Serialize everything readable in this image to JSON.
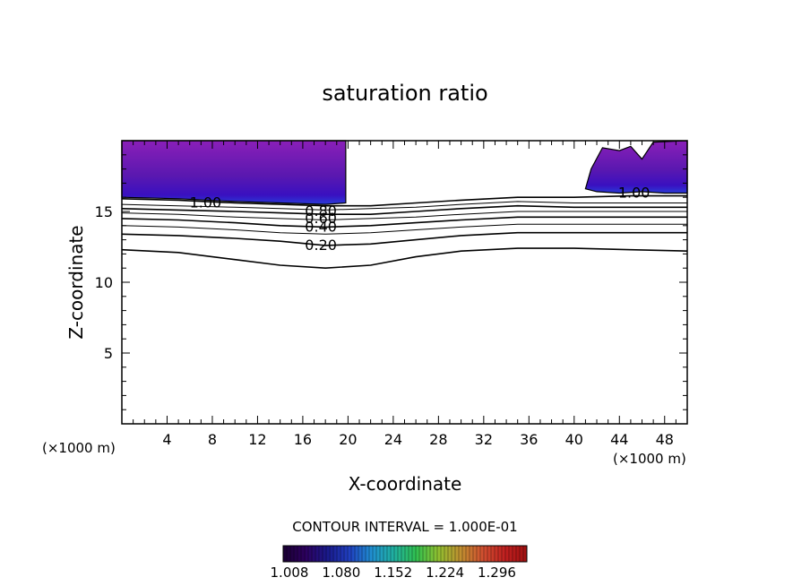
{
  "chart_data": {
    "type": "contour",
    "title": "saturation ratio",
    "xlabel": "X-coordinate",
    "ylabel": "Z-coordinate",
    "x_unit": "(×1000 m)",
    "z_unit": "(×1000 m)",
    "xlim": [
      0,
      50
    ],
    "ylim": [
      0,
      20
    ],
    "x_ticks": [
      4,
      8,
      12,
      16,
      20,
      24,
      28,
      32,
      36,
      40,
      44,
      48
    ],
    "y_ticks": [
      5,
      10,
      15
    ],
    "contour_interval_text": "CONTOUR INTERVAL = 1.000E-01",
    "contour_labels": [
      {
        "text": "1.00",
        "x": 7.4,
        "z": 15.6
      },
      {
        "text": "1.00",
        "x": 45.3,
        "z": 16.3
      },
      {
        "text": "0.80",
        "x": 17.6,
        "z": 15.0
      },
      {
        "text": "0.60",
        "x": 17.6,
        "z": 14.5
      },
      {
        "text": "0.40",
        "x": 17.6,
        "z": 13.9
      },
      {
        "text": "0.20",
        "x": 17.6,
        "z": 12.6
      }
    ],
    "contours": [
      {
        "level": 0.2,
        "points": [
          [
            0,
            12.3
          ],
          [
            5,
            12.1
          ],
          [
            10,
            11.6
          ],
          [
            14,
            11.2
          ],
          [
            18,
            11.0
          ],
          [
            22,
            11.2
          ],
          [
            26,
            11.8
          ],
          [
            30,
            12.2
          ],
          [
            35,
            12.4
          ],
          [
            40,
            12.4
          ],
          [
            45,
            12.3
          ],
          [
            50,
            12.2
          ]
        ]
      },
      {
        "level": 0.4,
        "points": [
          [
            0,
            13.4
          ],
          [
            5,
            13.3
          ],
          [
            10,
            13.1
          ],
          [
            14,
            12.9
          ],
          [
            18,
            12.6
          ],
          [
            22,
            12.7
          ],
          [
            26,
            13.0
          ],
          [
            30,
            13.3
          ],
          [
            35,
            13.5
          ],
          [
            40,
            13.5
          ],
          [
            45,
            13.5
          ],
          [
            50,
            13.5
          ]
        ]
      },
      {
        "level": 0.5,
        "points": [
          [
            0,
            14.0
          ],
          [
            5,
            13.9
          ],
          [
            10,
            13.7
          ],
          [
            14,
            13.5
          ],
          [
            18,
            13.4
          ],
          [
            22,
            13.5
          ],
          [
            26,
            13.7
          ],
          [
            30,
            13.9
          ],
          [
            35,
            14.1
          ],
          [
            40,
            14.1
          ],
          [
            45,
            14.1
          ],
          [
            50,
            14.1
          ]
        ]
      },
      {
        "level": 0.6,
        "points": [
          [
            0,
            14.5
          ],
          [
            5,
            14.4
          ],
          [
            10,
            14.2
          ],
          [
            14,
            14.0
          ],
          [
            18,
            13.9
          ],
          [
            22,
            14.0
          ],
          [
            26,
            14.2
          ],
          [
            30,
            14.4
          ],
          [
            35,
            14.6
          ],
          [
            40,
            14.6
          ],
          [
            45,
            14.6
          ],
          [
            50,
            14.6
          ]
        ]
      },
      {
        "level": 0.7,
        "points": [
          [
            0,
            14.9
          ],
          [
            5,
            14.8
          ],
          [
            10,
            14.6
          ],
          [
            14,
            14.5
          ],
          [
            18,
            14.4
          ],
          [
            22,
            14.5
          ],
          [
            26,
            14.6
          ],
          [
            30,
            14.8
          ],
          [
            35,
            15.0
          ],
          [
            40,
            15.0
          ],
          [
            45,
            15.0
          ],
          [
            50,
            15.0
          ]
        ]
      },
      {
        "level": 0.8,
        "points": [
          [
            0,
            15.2
          ],
          [
            5,
            15.1
          ],
          [
            10,
            15.0
          ],
          [
            14,
            14.9
          ],
          [
            18,
            14.8
          ],
          [
            22,
            14.8
          ],
          [
            26,
            15.0
          ],
          [
            30,
            15.2
          ],
          [
            35,
            15.4
          ],
          [
            40,
            15.3
          ],
          [
            45,
            15.3
          ],
          [
            50,
            15.3
          ]
        ]
      },
      {
        "level": 0.9,
        "points": [
          [
            0,
            15.5
          ],
          [
            5,
            15.4
          ],
          [
            10,
            15.3
          ],
          [
            14,
            15.2
          ],
          [
            18,
            15.1
          ],
          [
            22,
            15.2
          ],
          [
            26,
            15.3
          ],
          [
            30,
            15.5
          ],
          [
            35,
            15.7
          ],
          [
            40,
            15.6
          ],
          [
            45,
            15.6
          ],
          [
            50,
            15.6
          ]
        ]
      },
      {
        "level": 1.0,
        "points": [
          [
            0,
            15.9
          ],
          [
            5,
            15.8
          ],
          [
            10,
            15.6
          ],
          [
            14,
            15.5
          ],
          [
            18,
            15.4
          ],
          [
            22,
            15.4
          ],
          [
            26,
            15.6
          ],
          [
            30,
            15.8
          ],
          [
            35,
            16.0
          ],
          [
            40,
            16.0
          ],
          [
            45,
            16.1
          ],
          [
            50,
            16.1
          ]
        ]
      }
    ],
    "shaded_regions": [
      {
        "points": [
          [
            0,
            20
          ],
          [
            19.8,
            20
          ],
          [
            19.8,
            15.6
          ],
          [
            18,
            15.5
          ],
          [
            14,
            15.6
          ],
          [
            10,
            15.7
          ],
          [
            5,
            15.9
          ],
          [
            0,
            16.0
          ]
        ]
      },
      {
        "points": [
          [
            41,
            16.6
          ],
          [
            41.5,
            18
          ],
          [
            42.5,
            19.5
          ],
          [
            44,
            19.3
          ],
          [
            45,
            19.6
          ],
          [
            46,
            18.7
          ],
          [
            47,
            19.9
          ],
          [
            50,
            20
          ],
          [
            50,
            16.3
          ],
          [
            48,
            16.3
          ],
          [
            46,
            16.4
          ],
          [
            44,
            16.3
          ],
          [
            42,
            16.4
          ]
        ]
      }
    ],
    "colorbar": {
      "ticks": [
        "1.008",
        "1.080",
        "1.152",
        "1.224",
        "1.296"
      ],
      "colors": [
        "#1a0033",
        "#2d005e",
        "#1a1a8c",
        "#2040c0",
        "#2090d0",
        "#20b0a0",
        "#30c050",
        "#90c030",
        "#c09030",
        "#d05030",
        "#c02020",
        "#a01010"
      ]
    }
  }
}
